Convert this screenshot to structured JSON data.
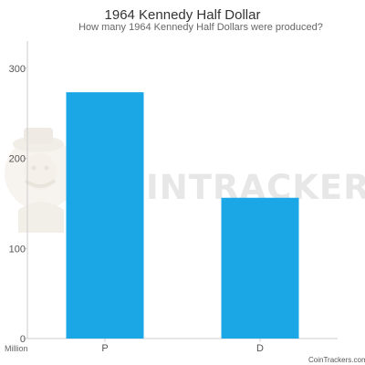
{
  "chart_data": {
    "type": "bar",
    "title": "1964 Kennedy Half Dollar",
    "subtitle": "How many 1964 Kennedy Half Dollars were produced?",
    "categories": [
      "P",
      "D"
    ],
    "values": [
      273.3,
      156.2
    ],
    "ylim": [
      0,
      320
    ],
    "yticks": [
      "0",
      "100",
      "200",
      "300"
    ],
    "ylabel": "Million",
    "grid": false,
    "legend": "none"
  },
  "watermark": {
    "text": "INTRACKERS",
    "logo_icon": "coin-trackers-mascot-logo"
  },
  "credit": "CoinTrackers.com",
  "colors": {
    "bar": "#1ba7e6",
    "axis": "#cccccc",
    "text": "#333333",
    "watermark": "#e7e7e7"
  }
}
